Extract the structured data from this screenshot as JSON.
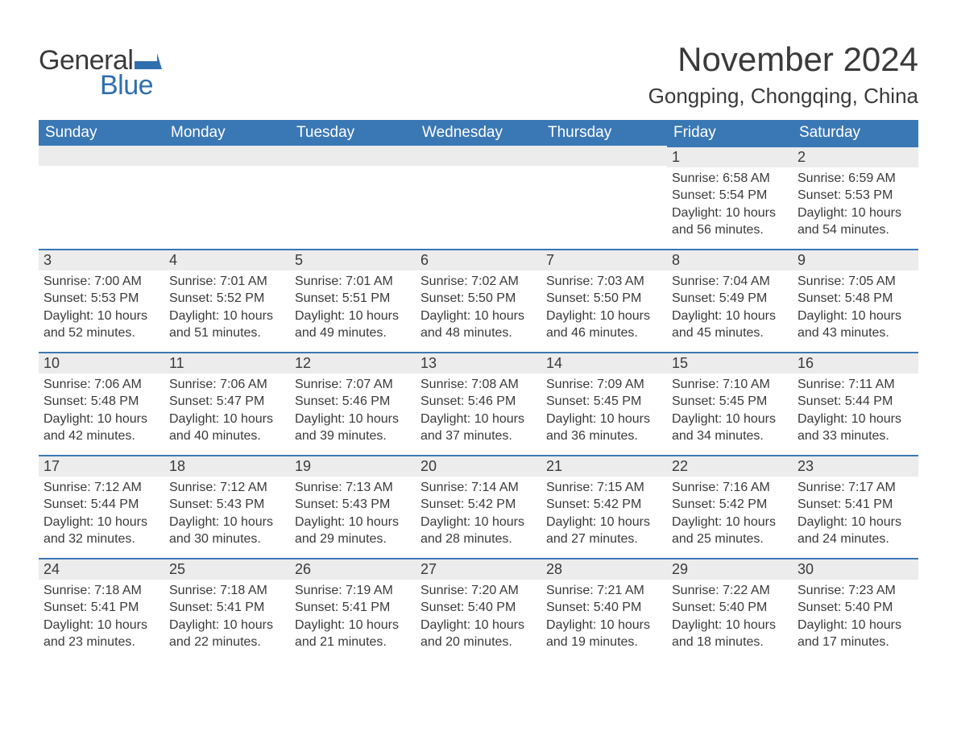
{
  "brand": {
    "part1": "General",
    "part2": "Blue"
  },
  "title": "November 2024",
  "location": "Gongping, Chongqing, China",
  "colors": {
    "header_bg": "#3a78b5",
    "header_text": "#ffffff",
    "band_bg": "#ececec",
    "band_border": "#3a78b5",
    "text": "#3a3a3a",
    "logo_blue": "#2f6fad",
    "background": "#ffffff"
  },
  "fonts": {
    "title_size_pt": 32,
    "location_size_pt": 20,
    "header_size_pt": 14,
    "daynum_size_pt": 14,
    "body_size_pt": 12
  },
  "layout": {
    "columns": 7,
    "rows": 5,
    "first_weekday_index": 5
  },
  "weekdays": [
    "Sunday",
    "Monday",
    "Tuesday",
    "Wednesday",
    "Thursday",
    "Friday",
    "Saturday"
  ],
  "days": [
    {
      "n": 1,
      "sunrise": "6:58 AM",
      "sunset": "5:54 PM",
      "dayl1": "Daylight: 10 hours",
      "dayl2": "and 56 minutes."
    },
    {
      "n": 2,
      "sunrise": "6:59 AM",
      "sunset": "5:53 PM",
      "dayl1": "Daylight: 10 hours",
      "dayl2": "and 54 minutes."
    },
    {
      "n": 3,
      "sunrise": "7:00 AM",
      "sunset": "5:53 PM",
      "dayl1": "Daylight: 10 hours",
      "dayl2": "and 52 minutes."
    },
    {
      "n": 4,
      "sunrise": "7:01 AM",
      "sunset": "5:52 PM",
      "dayl1": "Daylight: 10 hours",
      "dayl2": "and 51 minutes."
    },
    {
      "n": 5,
      "sunrise": "7:01 AM",
      "sunset": "5:51 PM",
      "dayl1": "Daylight: 10 hours",
      "dayl2": "and 49 minutes."
    },
    {
      "n": 6,
      "sunrise": "7:02 AM",
      "sunset": "5:50 PM",
      "dayl1": "Daylight: 10 hours",
      "dayl2": "and 48 minutes."
    },
    {
      "n": 7,
      "sunrise": "7:03 AM",
      "sunset": "5:50 PM",
      "dayl1": "Daylight: 10 hours",
      "dayl2": "and 46 minutes."
    },
    {
      "n": 8,
      "sunrise": "7:04 AM",
      "sunset": "5:49 PM",
      "dayl1": "Daylight: 10 hours",
      "dayl2": "and 45 minutes."
    },
    {
      "n": 9,
      "sunrise": "7:05 AM",
      "sunset": "5:48 PM",
      "dayl1": "Daylight: 10 hours",
      "dayl2": "and 43 minutes."
    },
    {
      "n": 10,
      "sunrise": "7:06 AM",
      "sunset": "5:48 PM",
      "dayl1": "Daylight: 10 hours",
      "dayl2": "and 42 minutes."
    },
    {
      "n": 11,
      "sunrise": "7:06 AM",
      "sunset": "5:47 PM",
      "dayl1": "Daylight: 10 hours",
      "dayl2": "and 40 minutes."
    },
    {
      "n": 12,
      "sunrise": "7:07 AM",
      "sunset": "5:46 PM",
      "dayl1": "Daylight: 10 hours",
      "dayl2": "and 39 minutes."
    },
    {
      "n": 13,
      "sunrise": "7:08 AM",
      "sunset": "5:46 PM",
      "dayl1": "Daylight: 10 hours",
      "dayl2": "and 37 minutes."
    },
    {
      "n": 14,
      "sunrise": "7:09 AM",
      "sunset": "5:45 PM",
      "dayl1": "Daylight: 10 hours",
      "dayl2": "and 36 minutes."
    },
    {
      "n": 15,
      "sunrise": "7:10 AM",
      "sunset": "5:45 PM",
      "dayl1": "Daylight: 10 hours",
      "dayl2": "and 34 minutes."
    },
    {
      "n": 16,
      "sunrise": "7:11 AM",
      "sunset": "5:44 PM",
      "dayl1": "Daylight: 10 hours",
      "dayl2": "and 33 minutes."
    },
    {
      "n": 17,
      "sunrise": "7:12 AM",
      "sunset": "5:44 PM",
      "dayl1": "Daylight: 10 hours",
      "dayl2": "and 32 minutes."
    },
    {
      "n": 18,
      "sunrise": "7:12 AM",
      "sunset": "5:43 PM",
      "dayl1": "Daylight: 10 hours",
      "dayl2": "and 30 minutes."
    },
    {
      "n": 19,
      "sunrise": "7:13 AM",
      "sunset": "5:43 PM",
      "dayl1": "Daylight: 10 hours",
      "dayl2": "and 29 minutes."
    },
    {
      "n": 20,
      "sunrise": "7:14 AM",
      "sunset": "5:42 PM",
      "dayl1": "Daylight: 10 hours",
      "dayl2": "and 28 minutes."
    },
    {
      "n": 21,
      "sunrise": "7:15 AM",
      "sunset": "5:42 PM",
      "dayl1": "Daylight: 10 hours",
      "dayl2": "and 27 minutes."
    },
    {
      "n": 22,
      "sunrise": "7:16 AM",
      "sunset": "5:42 PM",
      "dayl1": "Daylight: 10 hours",
      "dayl2": "and 25 minutes."
    },
    {
      "n": 23,
      "sunrise": "7:17 AM",
      "sunset": "5:41 PM",
      "dayl1": "Daylight: 10 hours",
      "dayl2": "and 24 minutes."
    },
    {
      "n": 24,
      "sunrise": "7:18 AM",
      "sunset": "5:41 PM",
      "dayl1": "Daylight: 10 hours",
      "dayl2": "and 23 minutes."
    },
    {
      "n": 25,
      "sunrise": "7:18 AM",
      "sunset": "5:41 PM",
      "dayl1": "Daylight: 10 hours",
      "dayl2": "and 22 minutes."
    },
    {
      "n": 26,
      "sunrise": "7:19 AM",
      "sunset": "5:41 PM",
      "dayl1": "Daylight: 10 hours",
      "dayl2": "and 21 minutes."
    },
    {
      "n": 27,
      "sunrise": "7:20 AM",
      "sunset": "5:40 PM",
      "dayl1": "Daylight: 10 hours",
      "dayl2": "and 20 minutes."
    },
    {
      "n": 28,
      "sunrise": "7:21 AM",
      "sunset": "5:40 PM",
      "dayl1": "Daylight: 10 hours",
      "dayl2": "and 19 minutes."
    },
    {
      "n": 29,
      "sunrise": "7:22 AM",
      "sunset": "5:40 PM",
      "dayl1": "Daylight: 10 hours",
      "dayl2": "and 18 minutes."
    },
    {
      "n": 30,
      "sunrise": "7:23 AM",
      "sunset": "5:40 PM",
      "dayl1": "Daylight: 10 hours",
      "dayl2": "and 17 minutes."
    }
  ],
  "labels": {
    "sunrise_prefix": "Sunrise: ",
    "sunset_prefix": "Sunset: "
  }
}
